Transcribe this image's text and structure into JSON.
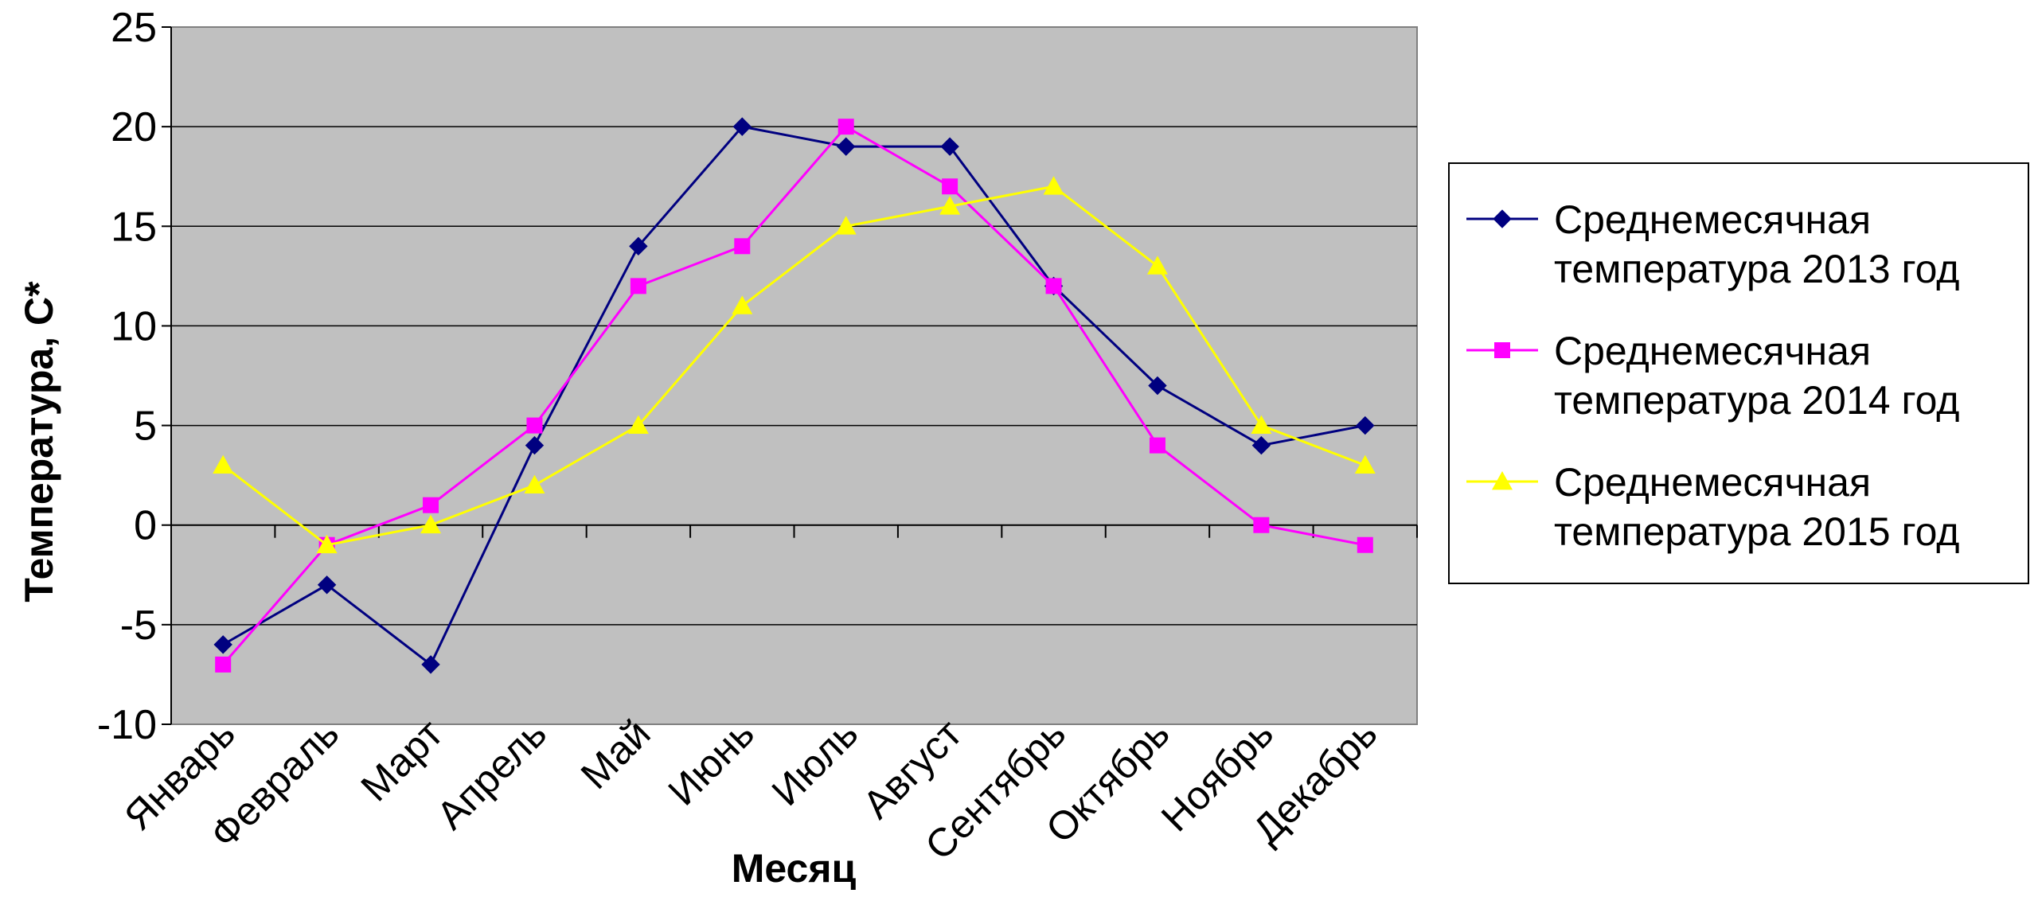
{
  "chart_data": {
    "type": "line",
    "title": "",
    "xlabel": "Месяц",
    "ylabel": "Температура, С*",
    "categories": [
      "Январь",
      "Февраль",
      "Март",
      "Апрель",
      "Май",
      "Июнь",
      "Июль",
      "Август",
      "Сентябрь",
      "Октябрь",
      "Ноябрь",
      "Декабрь"
    ],
    "ylim": [
      -10,
      25
    ],
    "yticks": [
      -10,
      -5,
      0,
      5,
      10,
      15,
      20,
      25
    ],
    "grid": true,
    "legend_position": "right",
    "plot_background": "#c0c0c0",
    "series": [
      {
        "name": "Среднемесячная температура 2013 год",
        "color": "#000080",
        "marker": "diamond",
        "values": [
          -6,
          -3,
          -7,
          4,
          14,
          20,
          19,
          19,
          12,
          7,
          4,
          5
        ]
      },
      {
        "name": "Среднемесячная температура 2014 год",
        "color": "#ff00ff",
        "marker": "square",
        "values": [
          -7,
          -1,
          1,
          5,
          12,
          14,
          20,
          17,
          12,
          4,
          0,
          -1
        ]
      },
      {
        "name": "Среднемесячная температура 2015 год",
        "color": "#ffff00",
        "marker": "triangle",
        "values": [
          3,
          -1,
          0,
          2,
          5,
          11,
          15,
          16,
          17,
          13,
          5,
          3
        ]
      }
    ]
  }
}
